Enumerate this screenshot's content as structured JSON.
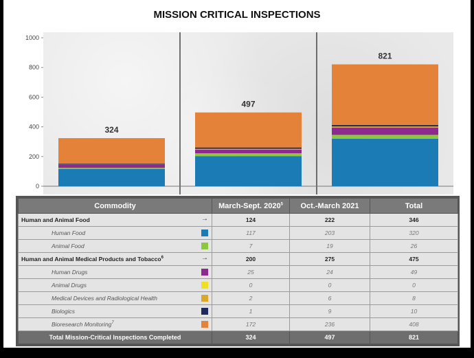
{
  "title": "MISSION CRITICAL INSPECTIONS",
  "chart_data": {
    "type": "bar",
    "stacked": true,
    "categories": [
      "March-Sept. 2020",
      "Oct.-March 2021",
      "Total"
    ],
    "ylim": [
      0,
      1000
    ],
    "yticks": [
      0,
      200,
      400,
      600,
      800,
      1000
    ],
    "totals": [
      324,
      497,
      821
    ],
    "grid": false,
    "series": [
      {
        "name": "Human Food",
        "color": "#1a7bb5",
        "values": [
          117,
          203,
          320
        ]
      },
      {
        "name": "Animal Food",
        "color": "#8dc63f",
        "values": [
          7,
          19,
          26
        ]
      },
      {
        "name": "Human Drugs",
        "color": "#8e2a8e",
        "values": [
          25,
          24,
          49
        ]
      },
      {
        "name": "Animal Drugs",
        "color": "#ece020",
        "values": [
          0,
          0,
          0
        ]
      },
      {
        "name": "Medical Devices and Radiological Health",
        "color": "#d9a82a",
        "values": [
          2,
          6,
          8
        ]
      },
      {
        "name": "Biologics",
        "color": "#1e2a5e",
        "values": [
          1,
          9,
          10
        ]
      },
      {
        "name": "Bioresearch Monitoring",
        "color": "#e5823a",
        "values": [
          172,
          236,
          408
        ]
      }
    ]
  },
  "table": {
    "headers": {
      "commodity": "Commodity",
      "col1": "March-Sept. 2020",
      "col1_sup": "5",
      "col2": "Oct.-March 2021",
      "col3": "Total"
    },
    "rows": [
      {
        "kind": "group",
        "name": "Human and Animal Food",
        "sup": "",
        "icon": "arrow-icon",
        "v1": "124",
        "v2": "222",
        "v3": "346"
      },
      {
        "kind": "sub",
        "name": "Human Food",
        "sup": "",
        "color": "#1a7bb5",
        "v1": "117",
        "v2": "203",
        "v3": "320"
      },
      {
        "kind": "sub",
        "name": "Animal Food",
        "sup": "",
        "color": "#8dc63f",
        "v1": "7",
        "v2": "19",
        "v3": "26"
      },
      {
        "kind": "group",
        "name": "Human and Animal Medical Products and Tobacco",
        "sup": "6",
        "icon": "arrow-icon",
        "v1": "200",
        "v2": "275",
        "v3": "475"
      },
      {
        "kind": "sub",
        "name": "Human Drugs",
        "sup": "",
        "color": "#8e2a8e",
        "v1": "25",
        "v2": "24",
        "v3": "49"
      },
      {
        "kind": "sub",
        "name": "Animal Drugs",
        "sup": "",
        "color": "#ece020",
        "v1": "0",
        "v2": "0",
        "v3": "0"
      },
      {
        "kind": "sub",
        "name": "Medical Devices and Radiological Health",
        "sup": "",
        "color": "#d9a82a",
        "v1": "2",
        "v2": "6",
        "v3": "8"
      },
      {
        "kind": "sub",
        "name": "Biologics",
        "sup": "",
        "color": "#1e2a5e",
        "v1": "1",
        "v2": "9",
        "v3": "10"
      },
      {
        "kind": "sub",
        "name": "Bioresearch Monitoring",
        "sup": "7",
        "color": "#e5823a",
        "v1": "172",
        "v2": "236",
        "v3": "408"
      }
    ],
    "total_row": {
      "name": "Total Mission-Critical Inspections Completed",
      "v1": "324",
      "v2": "497",
      "v3": "821"
    }
  }
}
